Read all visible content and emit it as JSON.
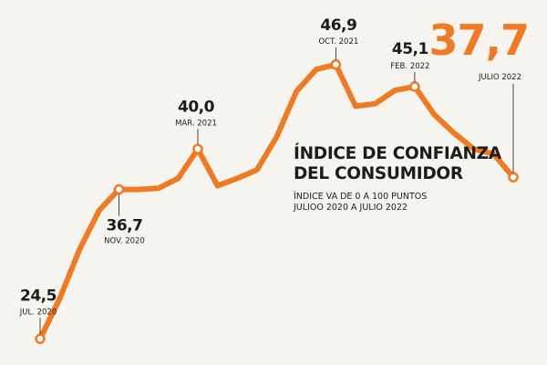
{
  "accent_color": "#f07a22",
  "text_color": "#1c1c1c",
  "title_lines": [
    "ÍNDICE DE CONFIANZA",
    "DEL CONSUMIDOR"
  ],
  "subtitle_lines": [
    "ÍNDICE VA DE 0 A 100 PUNTOS",
    "JULIOO 2020 A JULIO 2022"
  ],
  "chart_data": {
    "type": "line",
    "title": "ÍNDICE DE CONFIANZA DEL CONSUMIDOR",
    "subtitle": "ÍNDICE VA DE 0 A 100 PUNTOS — JULIOO 2020 A JULIO 2022",
    "xlabel": "",
    "ylabel": "",
    "grid": false,
    "x_range": [
      "2020-07",
      "2022-07"
    ],
    "ylim": [
      24,
      48
    ],
    "series": [
      {
        "x": [
          "2020-07",
          "2020-08",
          "2020-09",
          "2020-10",
          "2020-11",
          "2020-12",
          "2021-01",
          "2021-02",
          "2021-03",
          "2021-04",
          "2021-05",
          "2021-06",
          "2021-07",
          "2021-08",
          "2021-09",
          "2021-10",
          "2021-11",
          "2021-12",
          "2022-01",
          "2022-02",
          "2022-03",
          "2022-04",
          "2022-05",
          "2022-06",
          "2022-07"
        ],
        "values": [
          24.5,
          27.8,
          31.8,
          35.0,
          36.7,
          36.7,
          36.8,
          37.6,
          40.0,
          37.0,
          37.6,
          38.3,
          41.0,
          44.7,
          46.5,
          46.9,
          43.5,
          43.7,
          44.8,
          45.1,
          42.8,
          41.3,
          40.0,
          39.6,
          37.7
        ]
      }
    ],
    "annotations": [
      {
        "index": 0,
        "value": "24,5",
        "date": "JUL. 2020"
      },
      {
        "index": 4,
        "value": "36,7",
        "date": "NOV. 2020"
      },
      {
        "index": 8,
        "value": "40,0",
        "date": "MAR. 2021"
      },
      {
        "index": 15,
        "value": "46,9",
        "date": "OCT. 2021"
      },
      {
        "index": 19,
        "value": "45,1",
        "date": "FEB. 2022"
      },
      {
        "index": 24,
        "value": "37,7",
        "date": "JULIO 2022",
        "highlight": true
      }
    ]
  }
}
